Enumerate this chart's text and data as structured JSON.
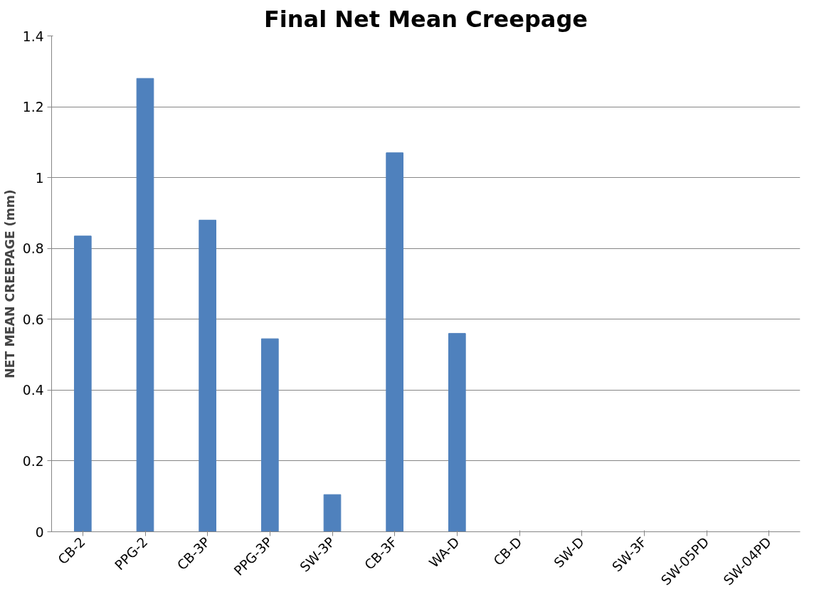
{
  "chart_data": {
    "type": "bar",
    "title": "Final Net Mean Creepage",
    "ylabel": "NET MEAN CREEPAGE (mm)",
    "categories": [
      "CB-2",
      "PPG-2",
      "CB-3P",
      "PPG-3P",
      "SW-3P",
      "CB-3F",
      "WA-D",
      "CB-D",
      "SW-D",
      "SW-3F",
      "SW-05PD",
      "SW-04PD"
    ],
    "values": [
      0.835,
      1.28,
      0.88,
      0.545,
      0.105,
      1.07,
      0.56,
      0,
      0,
      0,
      0,
      0
    ],
    "color": "#4f81bd",
    "ylim": [
      0,
      1.4
    ],
    "yticks": [
      0,
      {
        "value": 0.2,
        "label": "0.2"
      },
      {
        "value": 0.4,
        "label": "0.4"
      },
      {
        "value": 0.6,
        "label": "0.6"
      },
      {
        "value": 0.8,
        "label": "0.8"
      },
      1,
      {
        "value": 1.2,
        "label": "1.2"
      },
      {
        "value": 1.4,
        "label": "1.4"
      }
    ],
    "grid": "y"
  }
}
